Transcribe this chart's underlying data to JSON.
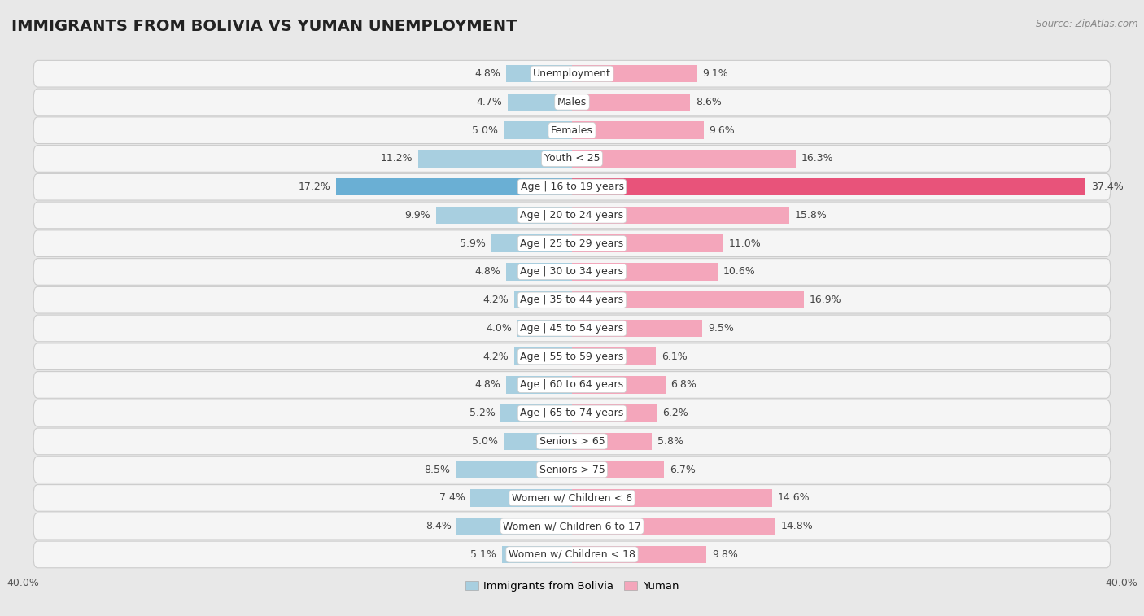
{
  "title": "IMMIGRANTS FROM BOLIVIA VS YUMAN UNEMPLOYMENT",
  "source": "Source: ZipAtlas.com",
  "categories": [
    "Unemployment",
    "Males",
    "Females",
    "Youth < 25",
    "Age | 16 to 19 years",
    "Age | 20 to 24 years",
    "Age | 25 to 29 years",
    "Age | 30 to 34 years",
    "Age | 35 to 44 years",
    "Age | 45 to 54 years",
    "Age | 55 to 59 years",
    "Age | 60 to 64 years",
    "Age | 65 to 74 years",
    "Seniors > 65",
    "Seniors > 75",
    "Women w/ Children < 6",
    "Women w/ Children 6 to 17",
    "Women w/ Children < 18"
  ],
  "bolivia_values": [
    4.8,
    4.7,
    5.0,
    11.2,
    17.2,
    9.9,
    5.9,
    4.8,
    4.2,
    4.0,
    4.2,
    4.8,
    5.2,
    5.0,
    8.5,
    7.4,
    8.4,
    5.1
  ],
  "yuman_values": [
    9.1,
    8.6,
    9.6,
    16.3,
    37.4,
    15.8,
    11.0,
    10.6,
    16.9,
    9.5,
    6.1,
    6.8,
    6.2,
    5.8,
    6.7,
    14.6,
    14.8,
    9.8
  ],
  "bolivia_color": "#a8cfe0",
  "yuman_color": "#f4a6bb",
  "bolivia_highlight": "#6aafd4",
  "yuman_highlight": "#e8537a",
  "background_color": "#e8e8e8",
  "row_bg_color": "#f5f5f5",
  "row_border_color": "#cccccc",
  "axis_limit": 40.0,
  "label_fontsize": 9,
  "value_fontsize": 9,
  "title_fontsize": 14,
  "bar_height": 0.62,
  "legend_labels": [
    "Immigrants from Bolivia",
    "Yuman"
  ],
  "tick_fontsize": 9
}
